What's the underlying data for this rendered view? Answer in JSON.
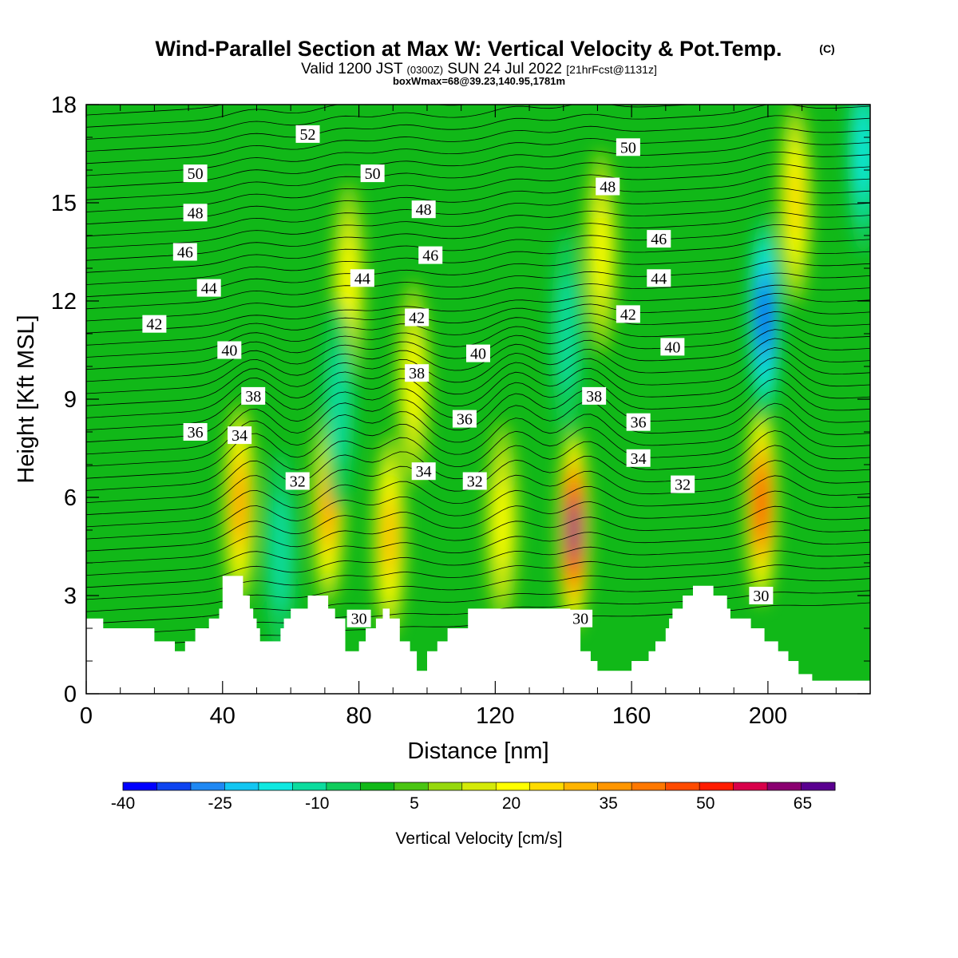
{
  "header": {
    "title": "Wind-Parallel Section at Max W: Vertical Velocity & Pot.Temp.",
    "copyright": "(C)",
    "valid_prefix": "Valid 1200 JST",
    "valid_utc": "(0300Z)",
    "valid_date": "SUN 24 Jul 2022",
    "forecast": "[21hrFcst@1131z]",
    "box_info": "boxWmax=68@39.23,140.95,1781m"
  },
  "chart_data": {
    "type": "heatmap",
    "xlabel": "Distance [nm]",
    "ylabel": "Height [Kft MSL]",
    "xlim": [
      0,
      230
    ],
    "ylim": [
      0,
      18
    ],
    "x_ticks": [
      "0",
      "40",
      "80",
      "120",
      "160",
      "200"
    ],
    "y_ticks": [
      "0",
      "3",
      "6",
      "9",
      "12",
      "15",
      "18"
    ],
    "colorbar": {
      "label": "Vertical Velocity [cm/s]",
      "tick_labels": [
        "-40",
        "-25",
        "-10",
        "5",
        "20",
        "35",
        "50",
        "65"
      ],
      "range": [
        -40,
        70
      ],
      "colors": [
        "#0000ff",
        "#0e44f0",
        "#1f88f3",
        "#13c6f2",
        "#0fe8e0",
        "#0cdc9e",
        "#10cc5c",
        "#11b818",
        "#4ac512",
        "#96d80d",
        "#d4ea08",
        "#ffff00",
        "#ffdb00",
        "#ffb400",
        "#ff9600",
        "#ff7800",
        "#ff4b00",
        "#ff1c00",
        "#d8004a",
        "#8a0070",
        "#5a0090"
      ]
    },
    "terrain_kft": [
      [
        0,
        2.3
      ],
      [
        5,
        2.3
      ],
      [
        5,
        2
      ],
      [
        20,
        2
      ],
      [
        20,
        1.6
      ],
      [
        26,
        1.6
      ],
      [
        26,
        1.3
      ],
      [
        29,
        1.3
      ],
      [
        29,
        1.6
      ],
      [
        32,
        1.6
      ],
      [
        32,
        2
      ],
      [
        36,
        2
      ],
      [
        36,
        2.3
      ],
      [
        39,
        2.3
      ],
      [
        39,
        2.6
      ],
      [
        40,
        2.6
      ],
      [
        40,
        3.6
      ],
      [
        46,
        3.6
      ],
      [
        46,
        3
      ],
      [
        48,
        3
      ],
      [
        48,
        2.6
      ],
      [
        49,
        2.6
      ],
      [
        49,
        2.3
      ],
      [
        50,
        2.3
      ],
      [
        50,
        2
      ],
      [
        51,
        2
      ],
      [
        51,
        1.6
      ],
      [
        57,
        1.6
      ],
      [
        57,
        2
      ],
      [
        58,
        2
      ],
      [
        58,
        2.3
      ],
      [
        60,
        2.3
      ],
      [
        60,
        2.6
      ],
      [
        65,
        2.6
      ],
      [
        65,
        3
      ],
      [
        71,
        3
      ],
      [
        71,
        2.6
      ],
      [
        73,
        2.6
      ],
      [
        73,
        2.3
      ],
      [
        76,
        2.3
      ],
      [
        76,
        1.3
      ],
      [
        80,
        1.3
      ],
      [
        80,
        1.6
      ],
      [
        82,
        1.6
      ],
      [
        82,
        2
      ],
      [
        85,
        2
      ],
      [
        85,
        2.3
      ],
      [
        87,
        2.3
      ],
      [
        87,
        2.6
      ],
      [
        89,
        2.6
      ],
      [
        89,
        2.3
      ],
      [
        92,
        2.3
      ],
      [
        92,
        1.6
      ],
      [
        95,
        1.6
      ],
      [
        95,
        1.3
      ],
      [
        97,
        1.3
      ],
      [
        97,
        0.7
      ],
      [
        100,
        0.7
      ],
      [
        100,
        1.3
      ],
      [
        103,
        1.3
      ],
      [
        103,
        1.6
      ],
      [
        106,
        1.6
      ],
      [
        106,
        2
      ],
      [
        112,
        2
      ],
      [
        112,
        2.6
      ],
      [
        142,
        2.6
      ],
      [
        142,
        2.3
      ],
      [
        145,
        2.3
      ],
      [
        145,
        1.3
      ],
      [
        148,
        1.3
      ],
      [
        148,
        1
      ],
      [
        150,
        1
      ],
      [
        150,
        0.7
      ],
      [
        160,
        0.7
      ],
      [
        160,
        1
      ],
      [
        165,
        1
      ],
      [
        165,
        1.3
      ],
      [
        167,
        1.3
      ],
      [
        167,
        1.6
      ],
      [
        170,
        1.6
      ],
      [
        170,
        2
      ],
      [
        171,
        2
      ],
      [
        171,
        2.3
      ],
      [
        172,
        2.3
      ],
      [
        172,
        2.6
      ],
      [
        175,
        2.6
      ],
      [
        175,
        3
      ],
      [
        178,
        3
      ],
      [
        178,
        3.3
      ],
      [
        184,
        3.3
      ],
      [
        184,
        3
      ],
      [
        188,
        3
      ],
      [
        188,
        2.6
      ],
      [
        189,
        2.6
      ],
      [
        189,
        2.3
      ],
      [
        195,
        2.3
      ],
      [
        195,
        2
      ],
      [
        199,
        2
      ],
      [
        199,
        1.6
      ],
      [
        203,
        1.6
      ],
      [
        203,
        1.3
      ],
      [
        206,
        1.3
      ],
      [
        206,
        1
      ],
      [
        209,
        1
      ],
      [
        209,
        0.6
      ],
      [
        213,
        0.6
      ],
      [
        213,
        0.4
      ],
      [
        230,
        0.4
      ]
    ],
    "updraft_cores": [
      {
        "x": 45,
        "z": 5.8,
        "w": 38
      },
      {
        "x": 71,
        "z": 5.8,
        "w": 35
      },
      {
        "x": 89,
        "z": 4.8,
        "w": 33
      },
      {
        "x": 122,
        "z": 5.2,
        "w": 22
      },
      {
        "x": 143,
        "z": 5.0,
        "w": 68
      },
      {
        "x": 198,
        "z": 5.8,
        "w": 52
      },
      {
        "x": 77,
        "z": 12.5,
        "w": 20
      },
      {
        "x": 96,
        "z": 9.5,
        "w": 20
      },
      {
        "x": 151,
        "z": 13.5,
        "w": 18
      },
      {
        "x": 208,
        "z": 15,
        "w": 25
      }
    ],
    "downdraft_cores": [
      {
        "x": 199,
        "z": 11.5,
        "w": -35
      },
      {
        "x": 141,
        "z": 11,
        "w": -12
      },
      {
        "x": 74,
        "z": 8.8,
        "w": -12
      },
      {
        "x": 57,
        "z": 4.3,
        "w": -12
      },
      {
        "x": 228,
        "z": 16.5,
        "w": -18
      }
    ],
    "theta_contour_labels": [
      {
        "text": "52",
        "x": 65,
        "z": 17.1
      },
      {
        "text": "50",
        "x": 32,
        "z": 15.9
      },
      {
        "text": "48",
        "x": 32,
        "z": 14.7
      },
      {
        "text": "46",
        "x": 29,
        "z": 13.5
      },
      {
        "text": "44",
        "x": 36,
        "z": 12.4
      },
      {
        "text": "42",
        "x": 20,
        "z": 11.3
      },
      {
        "text": "40",
        "x": 42,
        "z": 10.5
      },
      {
        "text": "38",
        "x": 49,
        "z": 9.1
      },
      {
        "text": "36",
        "x": 32,
        "z": 8.0
      },
      {
        "text": "34",
        "x": 45,
        "z": 7.9
      },
      {
        "text": "32",
        "x": 62,
        "z": 6.5
      },
      {
        "text": "30",
        "x": 80,
        "z": 2.3
      },
      {
        "text": "50",
        "x": 84,
        "z": 15.9
      },
      {
        "text": "48",
        "x": 99,
        "z": 14.8
      },
      {
        "text": "46",
        "x": 101,
        "z": 13.4
      },
      {
        "text": "44",
        "x": 81,
        "z": 12.7
      },
      {
        "text": "42",
        "x": 97,
        "z": 11.5
      },
      {
        "text": "40",
        "x": 115,
        "z": 10.4
      },
      {
        "text": "38",
        "x": 97,
        "z": 9.8
      },
      {
        "text": "36",
        "x": 111,
        "z": 8.4
      },
      {
        "text": "34",
        "x": 99,
        "z": 6.8
      },
      {
        "text": "32",
        "x": 114,
        "z": 6.5
      },
      {
        "text": "30",
        "x": 145,
        "z": 2.3
      },
      {
        "text": "50",
        "x": 159,
        "z": 16.7
      },
      {
        "text": "48",
        "x": 153,
        "z": 15.5
      },
      {
        "text": "46",
        "x": 168,
        "z": 13.9
      },
      {
        "text": "44",
        "x": 168,
        "z": 12.7
      },
      {
        "text": "42",
        "x": 159,
        "z": 11.6
      },
      {
        "text": "40",
        "x": 172,
        "z": 10.6
      },
      {
        "text": "38",
        "x": 149,
        "z": 9.1
      },
      {
        "text": "36",
        "x": 162,
        "z": 8.3
      },
      {
        "text": "34",
        "x": 162,
        "z": 7.2
      },
      {
        "text": "32",
        "x": 175,
        "z": 6.4
      },
      {
        "text": "30",
        "x": 198,
        "z": 3.0
      }
    ]
  }
}
